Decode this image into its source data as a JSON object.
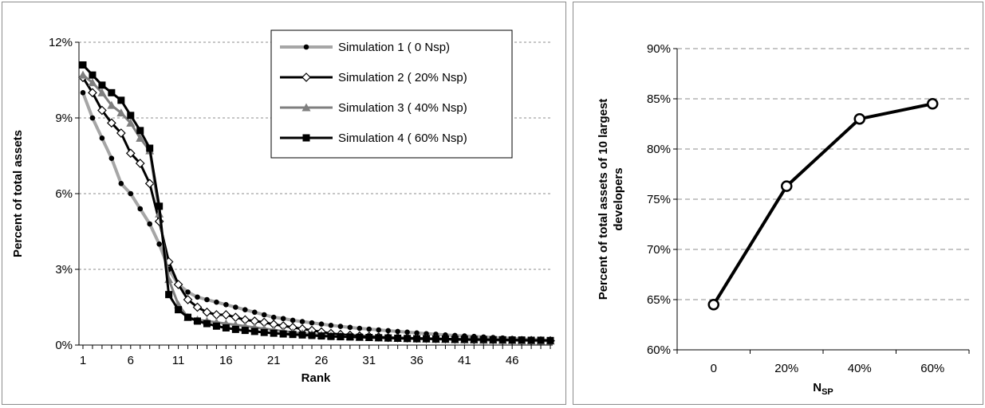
{
  "chart_data": [
    {
      "type": "line",
      "xlabel": "Rank",
      "ylabel": "Percent of total assets",
      "xlim": [
        1,
        50
      ],
      "ylim": [
        0,
        0.12
      ],
      "x_ticks": [
        "1",
        "6",
        "11",
        "16",
        "21",
        "26",
        "31",
        "36",
        "41",
        "46"
      ],
      "y_ticks": [
        "0%",
        "3%",
        "6%",
        "9%",
        "12%"
      ],
      "grid": "horizontal-dashed",
      "legend_position": "top-right",
      "x": [
        1,
        2,
        3,
        4,
        5,
        6,
        7,
        8,
        9,
        10,
        11,
        12,
        13,
        14,
        15,
        16,
        17,
        18,
        19,
        20,
        21,
        22,
        23,
        24,
        25,
        26,
        27,
        28,
        29,
        30,
        31,
        32,
        33,
        34,
        35,
        36,
        37,
        38,
        39,
        40,
        41,
        42,
        43,
        44,
        45,
        46,
        47,
        48,
        49,
        50
      ],
      "series": [
        {
          "name": "Simulation 1 ( 0 Nsp)",
          "color": "#a6a6a6",
          "marker": "dot",
          "values": [
            0.1,
            0.09,
            0.082,
            0.074,
            0.064,
            0.06,
            0.054,
            0.048,
            0.04,
            0.03,
            0.024,
            0.021,
            0.019,
            0.018,
            0.017,
            0.016,
            0.015,
            0.014,
            0.013,
            0.012,
            0.011,
            0.0105,
            0.0098,
            0.0093,
            0.0088,
            0.0083,
            0.0078,
            0.0074,
            0.007,
            0.0066,
            0.0063,
            0.006,
            0.0057,
            0.0054,
            0.0051,
            0.0048,
            0.0045,
            0.0043,
            0.004,
            0.0038,
            0.0036,
            0.0034,
            0.0032,
            0.003,
            0.0028,
            0.0026,
            0.0024,
            0.0022,
            0.002,
            0.0018
          ]
        },
        {
          "name": "Simulation 2 ( 20% Nsp)",
          "color": "#000000",
          "marker": "diamond",
          "values": [
            0.106,
            0.1,
            0.093,
            0.088,
            0.084,
            0.076,
            0.072,
            0.064,
            0.049,
            0.033,
            0.024,
            0.018,
            0.015,
            0.013,
            0.012,
            0.012,
            0.011,
            0.01,
            0.0095,
            0.009,
            0.0082,
            0.0076,
            0.007,
            0.0064,
            0.0058,
            0.0052,
            0.0046,
            0.0042,
            0.0039,
            0.0036,
            0.0034,
            0.0032,
            0.003,
            0.0029,
            0.0028,
            0.0027,
            0.0026,
            0.0025,
            0.0024,
            0.0023,
            0.0022,
            0.0021,
            0.002,
            0.002,
            0.0019,
            0.0019,
            0.0018,
            0.0018,
            0.0017,
            0.0017
          ]
        },
        {
          "name": "Simulation 3 ( 40% Nsp)",
          "color": "#7f7f7f",
          "marker": "triangle",
          "values": [
            0.107,
            0.104,
            0.1,
            0.095,
            0.092,
            0.088,
            0.082,
            0.077,
            0.052,
            0.026,
            0.016,
            0.011,
            0.01,
            0.0095,
            0.009,
            0.0085,
            0.008,
            0.0075,
            0.007,
            0.0065,
            0.006,
            0.0055,
            0.005,
            0.0046,
            0.0043,
            0.004,
            0.0037,
            0.0035,
            0.0033,
            0.0031,
            0.003,
            0.0029,
            0.0028,
            0.0027,
            0.0026,
            0.0025,
            0.0024,
            0.0023,
            0.0022,
            0.0021,
            0.002,
            0.002,
            0.0019,
            0.0019,
            0.0018,
            0.0018,
            0.0017,
            0.0017,
            0.0016,
            0.0016
          ]
        },
        {
          "name": "Simulation 4 ( 60% Nsp)",
          "color": "#000000",
          "marker": "square",
          "values": [
            0.111,
            0.107,
            0.103,
            0.1,
            0.097,
            0.091,
            0.085,
            0.078,
            0.055,
            0.02,
            0.014,
            0.011,
            0.0095,
            0.0085,
            0.0075,
            0.0068,
            0.0062,
            0.0058,
            0.0054,
            0.005,
            0.0047,
            0.0044,
            0.0042,
            0.004,
            0.0038,
            0.0036,
            0.0034,
            0.0033,
            0.0032,
            0.0031,
            0.003,
            0.0029,
            0.0028,
            0.0027,
            0.0026,
            0.0025,
            0.0025,
            0.0024,
            0.0024,
            0.0023,
            0.0023,
            0.0022,
            0.0022,
            0.0021,
            0.0021,
            0.002,
            0.002,
            0.0019,
            0.0019,
            0.0018
          ]
        }
      ]
    },
    {
      "type": "line",
      "xlabel_main": "N",
      "xlabel_sub": "SP",
      "ylabel_line1": "Percent of total assets of 10 largest",
      "ylabel_line2": "developers",
      "categories": [
        "0",
        "20%",
        "40%",
        "60%"
      ],
      "y_ticks": [
        "60%",
        "65%",
        "70%",
        "75%",
        "80%",
        "85%",
        "90%"
      ],
      "ylim": [
        0.6,
        0.9
      ],
      "grid": "horizontal-dashed",
      "series": [
        {
          "color": "#000000",
          "marker": "circle",
          "values": [
            0.645,
            0.763,
            0.83,
            0.845
          ]
        }
      ]
    }
  ]
}
